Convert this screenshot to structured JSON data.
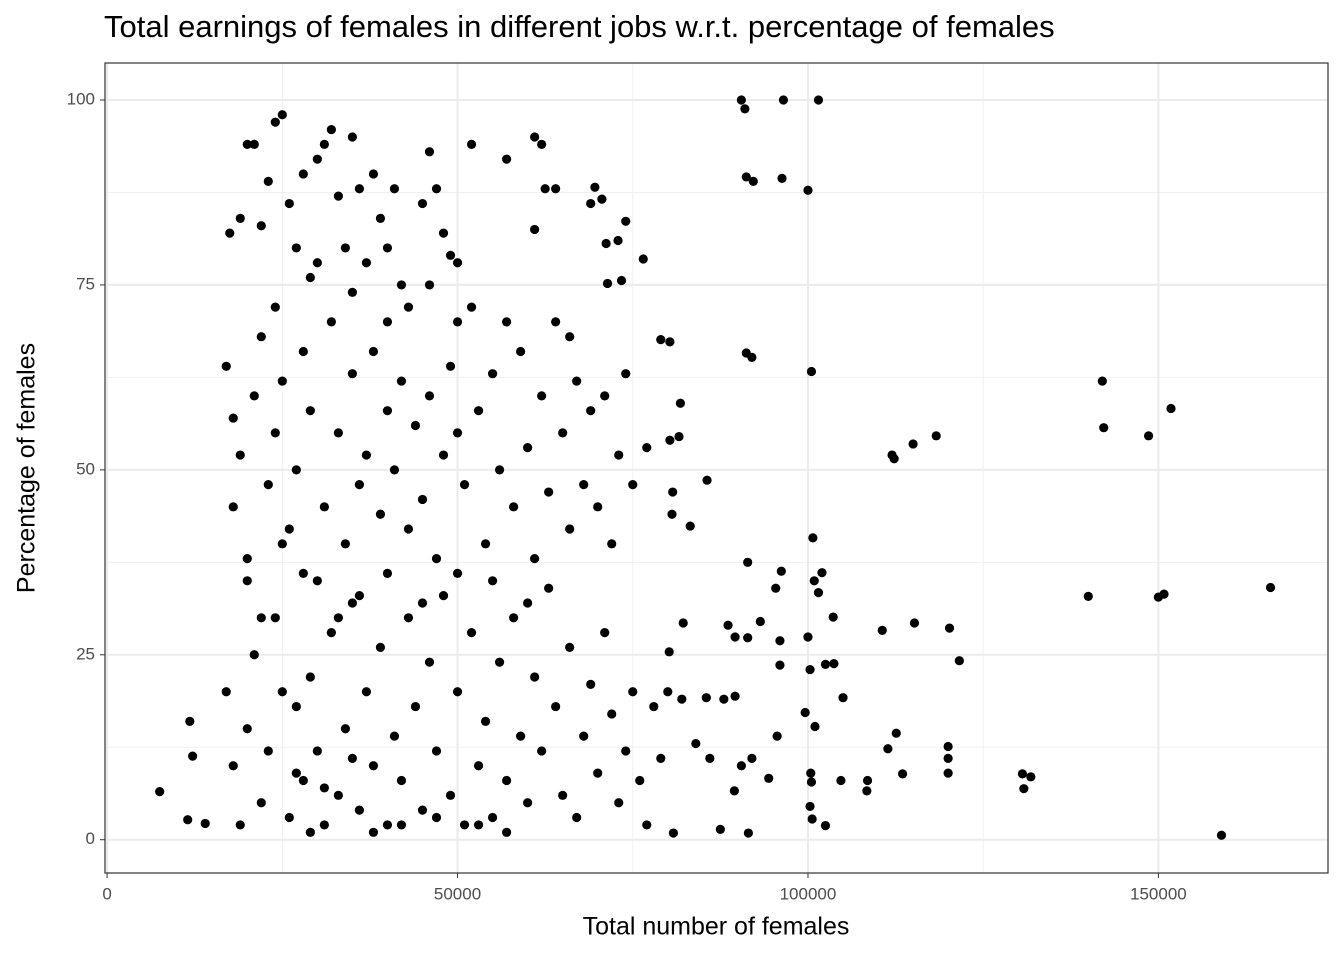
{
  "chart_data": {
    "type": "scatter",
    "title": "Total earnings of females in different jobs w.r.t. percentage of females",
    "x_label": "Total number of females",
    "y_label": "Percentage of females",
    "color": "#000000",
    "grid": true,
    "xlim": [
      -300,
      174200
    ],
    "ylim": [
      -4.5,
      105
    ],
    "xticks": [
      0,
      50000,
      100000,
      150000
    ],
    "yticks": [
      0,
      25,
      50,
      75,
      100
    ],
    "x": [
      7500,
      11500,
      11800,
      12200,
      14000,
      90500,
      91000,
      96500,
      101500,
      91200,
      92200,
      96300,
      100000,
      91200,
      92000,
      100500,
      142000,
      142200,
      151800,
      148600,
      118300,
      115000,
      112000,
      112300,
      140000,
      150000,
      150800,
      166000,
      159000,
      115200,
      120200,
      121600,
      110600,
      103600,
      102000,
      100900,
      101500,
      96200,
      95400,
      91400,
      100700,
      100300,
      102500,
      103700,
      105000,
      99600,
      101000,
      112600,
      111400,
      120000,
      120000,
      120000,
      113500,
      130600,
      131800,
      130800,
      108500,
      108400,
      104700,
      100400,
      100500,
      100300,
      100600,
      102500,
      91500,
      87500,
      80800,
      94400,
      92000,
      90500,
      89500,
      88000,
      85500,
      89600,
      95600,
      93200,
      91400,
      88600,
      89600,
      96000,
      96000,
      100000,
      82200,
      80200,
      83200,
      80600,
      85600,
      80700,
      81600,
      80300,
      81800,
      79000,
      80300,
      76500,
      73400,
      71400,
      71200,
      74000,
      72900,
      70600,
      69000,
      69600,
      17000,
      17500,
      18000,
      19000,
      20000,
      21000,
      22000,
      23000,
      24000,
      25000,
      26000,
      27000,
      28000,
      29000,
      30000,
      31000,
      32000,
      33000,
      34000,
      35000,
      36000,
      37000,
      38000,
      39000,
      40000,
      41000,
      42000,
      43000,
      45000,
      46000,
      47000,
      48000,
      49000,
      50000,
      52000,
      57000,
      61000,
      62000,
      62500,
      64000,
      61000,
      18000,
      19000,
      20000,
      21000,
      22000,
      23000,
      24000,
      25000,
      26000,
      27000,
      28000,
      29000,
      30000,
      31000,
      32000,
      33000,
      34000,
      35000,
      36000,
      37000,
      38000,
      39000,
      40000,
      41000,
      42000,
      43000,
      44000,
      45000,
      46000,
      47000,
      48000,
      49000,
      50000,
      51000,
      52000,
      53000,
      54000,
      55000,
      56000,
      57000,
      58000,
      59000,
      60000,
      61000,
      62000,
      63000,
      64000,
      65000,
      66000,
      67000,
      68000,
      69000,
      70000,
      71000,
      72000,
      73000,
      74000,
      75000,
      77000,
      66000,
      17000,
      18000,
      19000,
      20000,
      21000,
      22000,
      23000,
      24000,
      25000,
      26000,
      27000,
      28000,
      29000,
      30000,
      31000,
      32000,
      33000,
      34000,
      35000,
      36000,
      37000,
      38000,
      39000,
      40000,
      41000,
      42000,
      43000,
      44000,
      45000,
      46000,
      47000,
      48000,
      49000,
      50000,
      51000,
      52000,
      53000,
      54000,
      55000,
      56000,
      57000,
      58000,
      59000,
      60000,
      61000,
      62000,
      63000,
      64000,
      65000,
      66000,
      67000,
      68000,
      69000,
      70000,
      71000,
      72000,
      73000,
      74000,
      75000,
      76000,
      77000,
      78000,
      79000,
      80000,
      82000,
      84000,
      86000,
      20000,
      22000,
      25000,
      28000,
      33000,
      36000,
      40000,
      45000,
      50000,
      55000,
      60000,
      24000,
      30000,
      35000,
      40000,
      46000,
      50000,
      27000,
      31000,
      35000,
      42000,
      47000,
      53000,
      57000,
      29000,
      38000
    ],
    "y": [
      6.5,
      2.7,
      16,
      11.3,
      2.2,
      100,
      98.8,
      100,
      100,
      89.6,
      89,
      89.4,
      87.8,
      65.8,
      65.2,
      63.3,
      62,
      55.7,
      58.3,
      54.6,
      54.6,
      53.5,
      52,
      51.5,
      32.9,
      32.8,
      33.2,
      34.1,
      0.6,
      29.3,
      28.6,
      24.2,
      28.3,
      30.1,
      36.1,
      35,
      33.4,
      36.3,
      34,
      37.5,
      40.8,
      23,
      23.7,
      23.8,
      19.2,
      17.2,
      15.3,
      14.4,
      12.3,
      12.6,
      11,
      9,
      8.9,
      8.9,
      8.5,
      6.9,
      8,
      6.6,
      8,
      9,
      7.8,
      4.5,
      2.8,
      1.9,
      0.9,
      1.4,
      0.9,
      8.3,
      11,
      10,
      6.6,
      19,
      19.2,
      19.4,
      14,
      29.5,
      27.3,
      29,
      27.4,
      26.9,
      23.6,
      27.4,
      29.3,
      25.4,
      42.4,
      44,
      48.6,
      47,
      54.5,
      54,
      59,
      67.6,
      67.3,
      78.5,
      75.6,
      75.2,
      80.6,
      83.6,
      81,
      86.6,
      86,
      88.2,
      64,
      82,
      57,
      84,
      94,
      94,
      83,
      89,
      97,
      98,
      86,
      80,
      90,
      76,
      92,
      94,
      96,
      87,
      80,
      95,
      88,
      78,
      90,
      84,
      80,
      88,
      75,
      72,
      86,
      93,
      88,
      82,
      79,
      78,
      94,
      92,
      95,
      94,
      88,
      88,
      82.5,
      45,
      52,
      38,
      60,
      68,
      48,
      55,
      62,
      42,
      50,
      66,
      58,
      35,
      45,
      70,
      55,
      40,
      63,
      48,
      52,
      66,
      44,
      58,
      50,
      62,
      42,
      56,
      46,
      60,
      38,
      52,
      64,
      55,
      48,
      72,
      58,
      40,
      63,
      50,
      70,
      45,
      66,
      53,
      38,
      60,
      47,
      70,
      55,
      42,
      62,
      48,
      58,
      45,
      60,
      40,
      52,
      63,
      48,
      53,
      68,
      20,
      10,
      2,
      15,
      25,
      5,
      12,
      30,
      20,
      3,
      18,
      8,
      22,
      12,
      2,
      28,
      6,
      15,
      32,
      4,
      20,
      10,
      26,
      2,
      14,
      8,
      30,
      18,
      4,
      24,
      12,
      33,
      6,
      20,
      2,
      28,
      10,
      16,
      3,
      24,
      8,
      30,
      14,
      5,
      22,
      12,
      34,
      18,
      6,
      26,
      3,
      14,
      21,
      9,
      28,
      17,
      5,
      12,
      20,
      8,
      2,
      18,
      11,
      20,
      19,
      13,
      11,
      35,
      30,
      40,
      36,
      30,
      33,
      36,
      32,
      36,
      35,
      32,
      72,
      78,
      74,
      70,
      75,
      70,
      9,
      7,
      11,
      2,
      3,
      2,
      1,
      1,
      1
    ]
  }
}
